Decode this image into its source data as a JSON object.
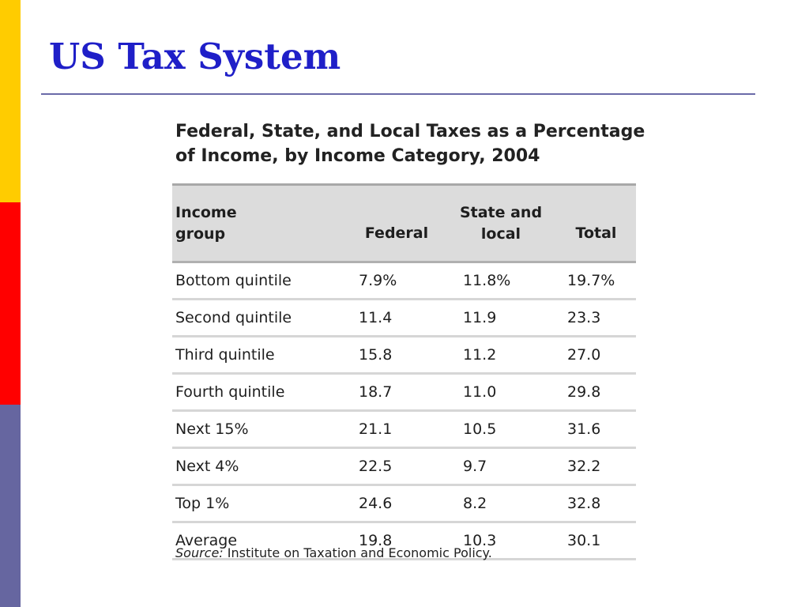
{
  "slide": {
    "title": "US Tax System",
    "colors": {
      "title": "#1f1fc8",
      "bar_yellow": "#ffcc00",
      "bar_red": "#ff0000",
      "bar_purple": "#6666a0",
      "rule": "#6b6ba8"
    }
  },
  "table": {
    "caption_line1": "Federal, State, and Local Taxes as a Percentage",
    "caption_line2": "of Income, by Income Category, 2004",
    "headers": {
      "group_line1": "Income",
      "group_line2": "group",
      "federal": "Federal",
      "state_line1": "State and",
      "state_line2": "local",
      "total": "Total"
    },
    "rows": [
      {
        "group": "Bottom quintile",
        "federal": "7.9%",
        "state": "11.8%",
        "total": "19.7%"
      },
      {
        "group": "Second quintile",
        "federal": "11.4",
        "state": "11.9",
        "total": "23.3"
      },
      {
        "group": "Third quintile",
        "federal": "15.8",
        "state": "11.2",
        "total": "27.0"
      },
      {
        "group": "Fourth quintile",
        "federal": "18.7",
        "state": "11.0",
        "total": "29.8"
      },
      {
        "group": "Next 15%",
        "federal": "21.1",
        "state": "10.5",
        "total": "31.6"
      },
      {
        "group": "Next 4%",
        "federal": "22.5",
        "state": "9.7",
        "total": "32.2"
      },
      {
        "group": "Top 1%",
        "federal": "24.6",
        "state": "8.2",
        "total": "32.8"
      },
      {
        "group": "Average",
        "federal": "19.8",
        "state": "10.3",
        "total": "30.1"
      }
    ],
    "source_label": "Source:",
    "source_text": " Institute on Taxation and Economic Policy."
  }
}
